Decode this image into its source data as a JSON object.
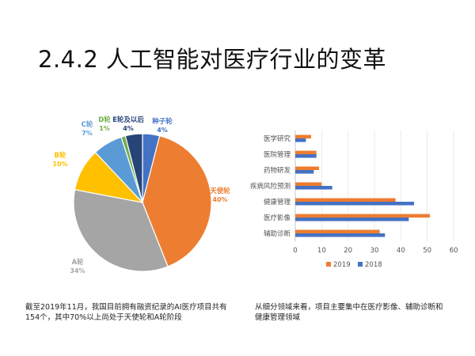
{
  "title": "2.4.2 人工智能对医疗行业的变革",
  "captions": {
    "left": "截至2019年11月，我国目前拥有融资纪录的AI医疗项目共有154个，其中70%以上尚处于天使轮和A轮阶段",
    "right": "从细分领域来看，项目主要集中在医疗影像、辅助诊断和健康管理领域"
  },
  "chart_data": [
    {
      "type": "pie",
      "slices": [
        {
          "label": "种子轮",
          "value": 4,
          "value_label": "4%",
          "color": "#4472C4"
        },
        {
          "label": "天使轮",
          "value": 40,
          "value_label": "40%",
          "color": "#ED7D31"
        },
        {
          "label": "A轮",
          "value": 34,
          "value_label": "34%",
          "color": "#A5A5A5"
        },
        {
          "label": "B轮",
          "value": 10,
          "value_label": "10%",
          "color": "#FFC000"
        },
        {
          "label": "C轮",
          "value": 7,
          "value_label": "7%",
          "color": "#5B9BD5"
        },
        {
          "label": "D轮",
          "value": 1,
          "value_label": "1%",
          "color": "#70AD47"
        },
        {
          "label": "E轮及以后",
          "value": 4,
          "value_label": "4%",
          "color": "#264478"
        }
      ]
    },
    {
      "type": "bar",
      "orientation": "horizontal",
      "categories": [
        "医学研究",
        "医院管理",
        "药物研发",
        "疾病风险预测",
        "健康管理",
        "医疗影像",
        "辅助诊断"
      ],
      "series": [
        {
          "name": "2019",
          "color": "#ED7D31",
          "values": [
            6,
            8,
            9,
            10,
            38,
            51,
            32
          ]
        },
        {
          "name": "2018",
          "color": "#4472C4",
          "values": [
            4,
            8,
            7,
            14,
            45,
            43,
            34
          ]
        }
      ],
      "xlim": [
        0,
        60
      ],
      "xticks": [
        "0",
        "10",
        "20",
        "30",
        "40",
        "50",
        "60"
      ],
      "legend": "bottom"
    }
  ]
}
